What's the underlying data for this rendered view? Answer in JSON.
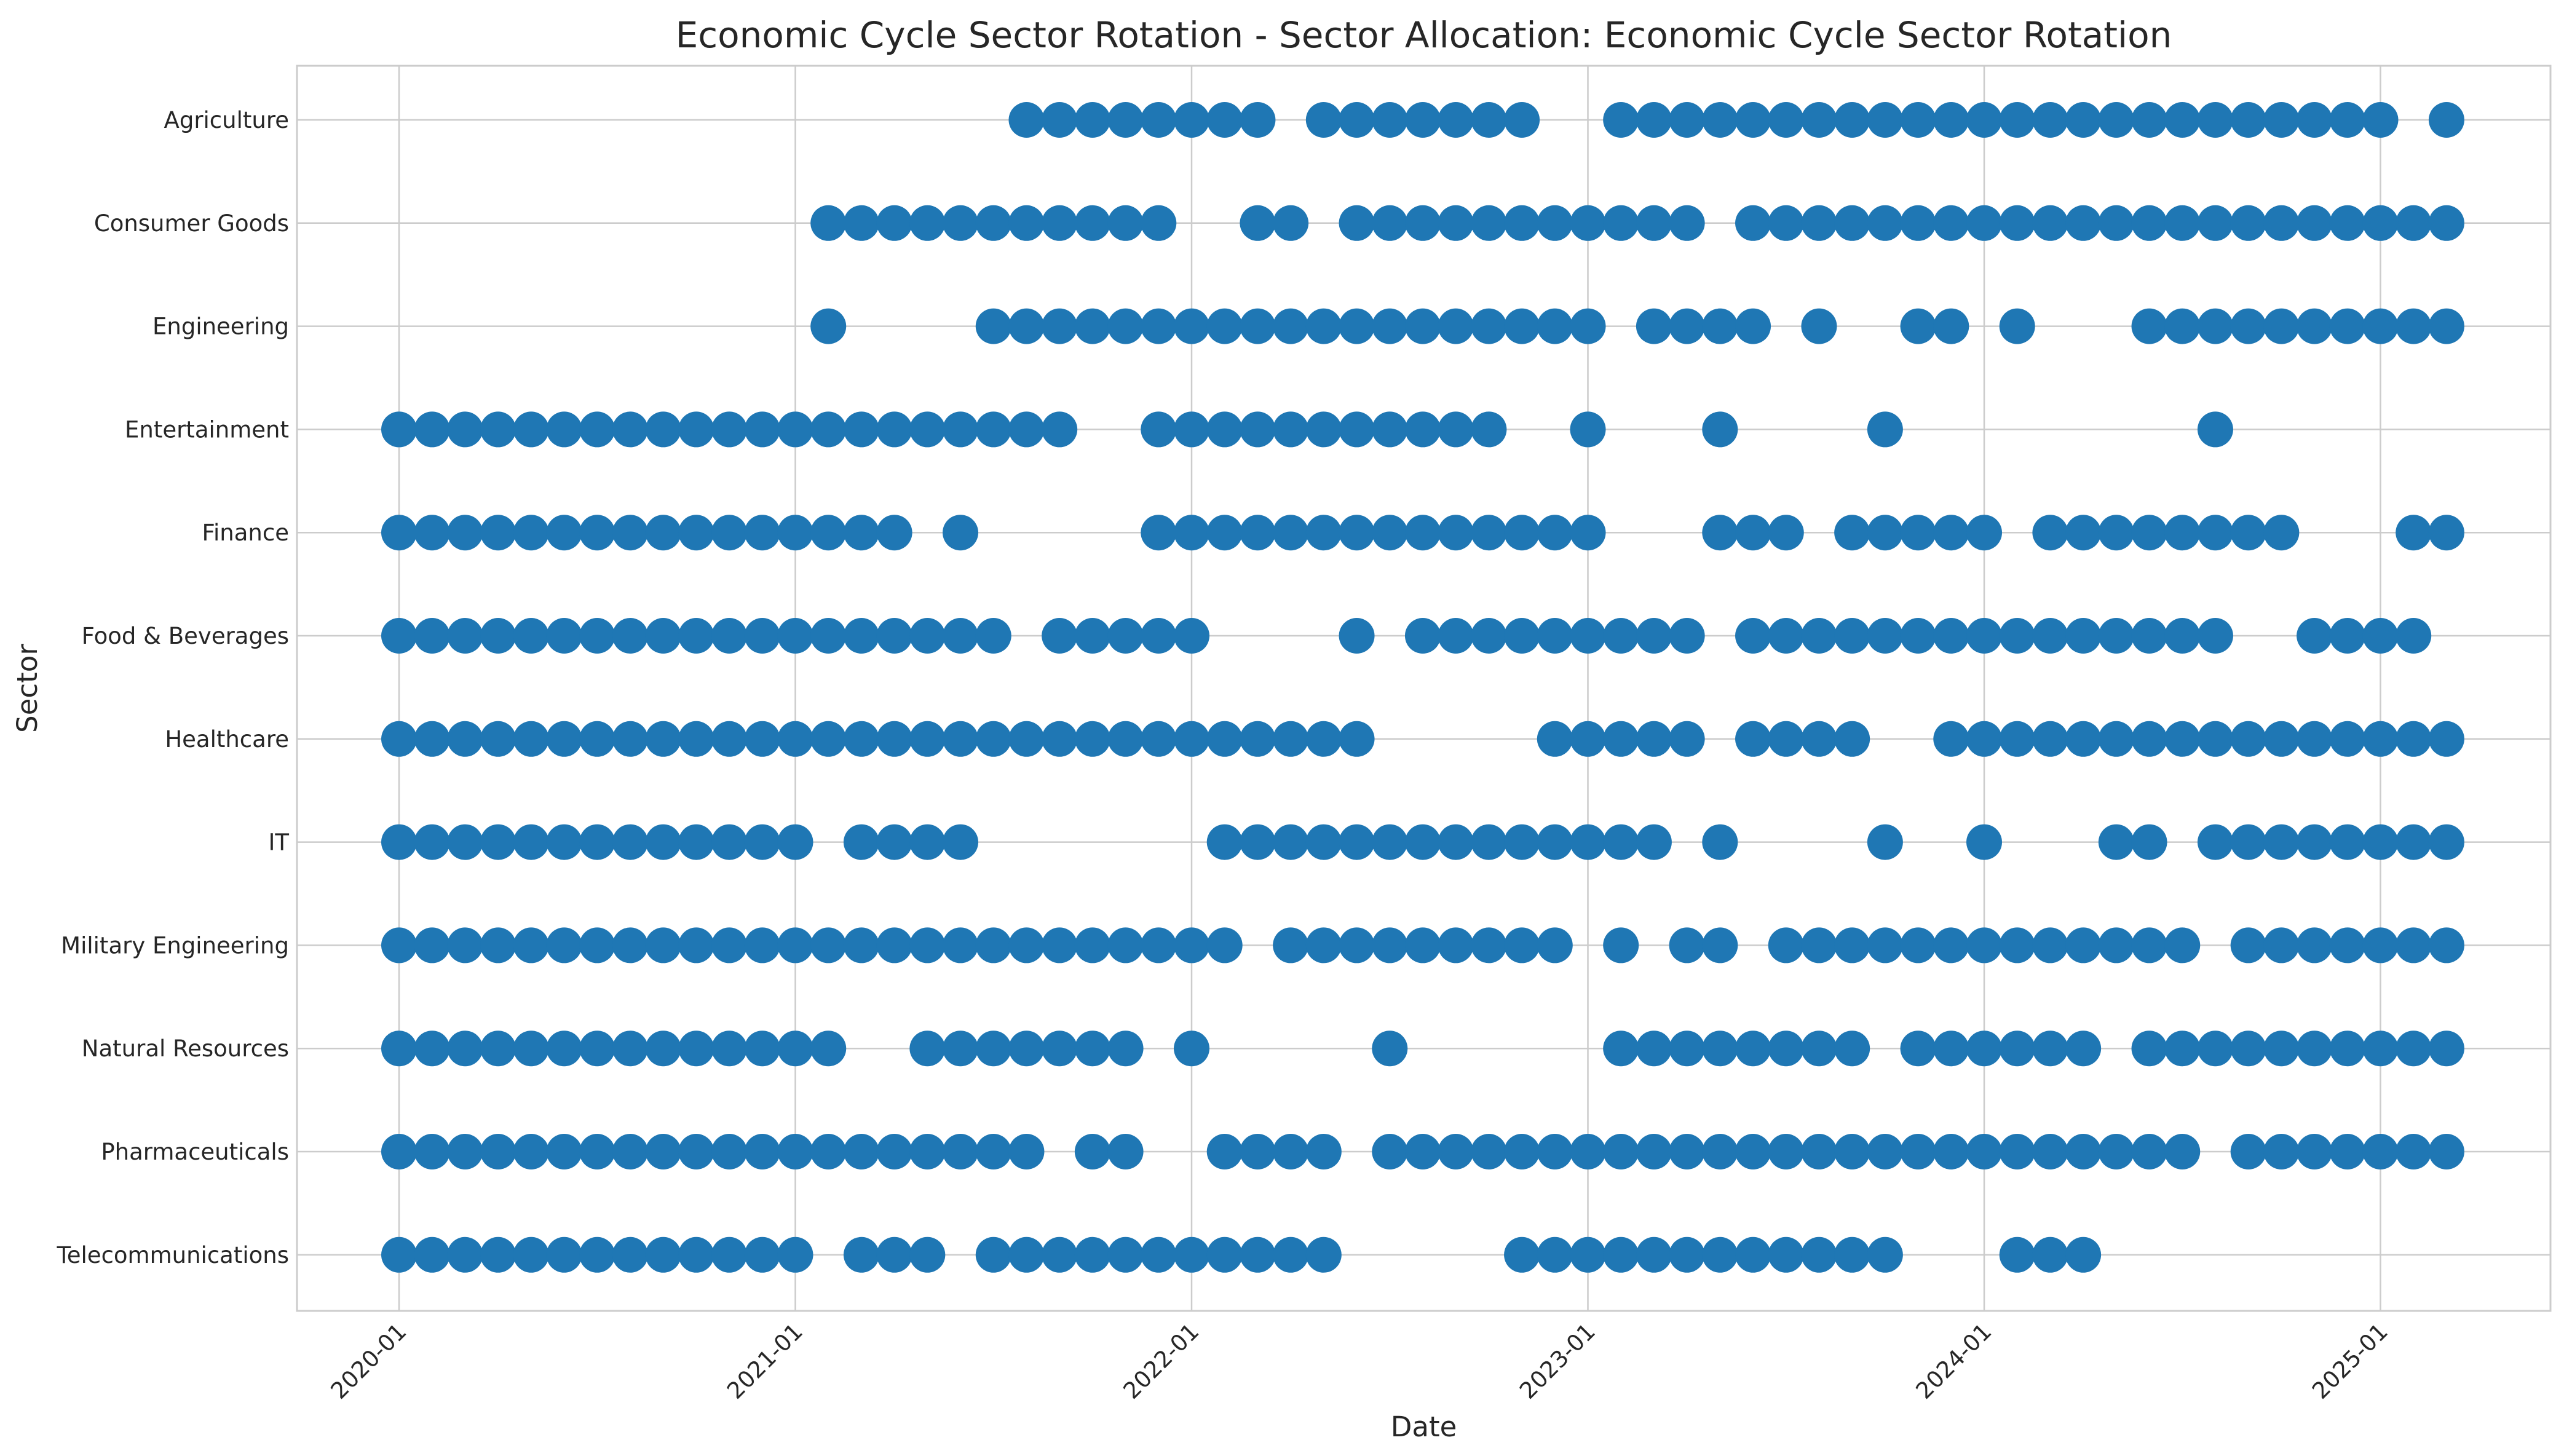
{
  "chart_data": {
    "type": "scatter",
    "title": "Economic Cycle Sector Rotation - Sector Allocation: Economic Cycle Sector Rotation",
    "xlabel": "Date",
    "ylabel": "Sector",
    "x_axis": "monthly dates (first of month)",
    "xlim": [
      "2019-10",
      "2025-05"
    ],
    "x_ticks": [
      "2020-01",
      "2021-01",
      "2022-01",
      "2023-01",
      "2024-01",
      "2025-01"
    ],
    "categories": [
      "Agriculture",
      "Consumer Goods",
      "Engineering",
      "Entertainment",
      "Finance",
      "Food & Beverages",
      "Healthcare",
      "IT",
      "Military Engineering",
      "Natural Resources",
      "Pharmaceuticals",
      "Telecommunications"
    ],
    "grid": true,
    "legend": "none",
    "marker_color": "#1f77b4",
    "series": [
      {
        "category": "Agriculture",
        "ranges": [
          [
            "2021-08",
            "2022-03"
          ],
          [
            "2022-05",
            "2022-11"
          ],
          [
            "2023-02",
            "2025-01"
          ],
          [
            "2025-03",
            "2025-03"
          ]
        ]
      },
      {
        "category": "Consumer Goods",
        "ranges": [
          [
            "2021-02",
            "2021-12"
          ],
          [
            "2022-03",
            "2022-04"
          ],
          [
            "2022-06",
            "2023-04"
          ],
          [
            "2023-06",
            "2025-03"
          ]
        ]
      },
      {
        "category": "Engineering",
        "ranges": [
          [
            "2021-02",
            "2021-02"
          ],
          [
            "2021-07",
            "2023-01"
          ],
          [
            "2023-03",
            "2023-06"
          ],
          [
            "2023-08",
            "2023-08"
          ],
          [
            "2023-11",
            "2023-12"
          ],
          [
            "2024-02",
            "2024-02"
          ],
          [
            "2024-06",
            "2025-03"
          ]
        ]
      },
      {
        "category": "Entertainment",
        "ranges": [
          [
            "2020-01",
            "2021-09"
          ],
          [
            "2021-12",
            "2022-10"
          ],
          [
            "2023-01",
            "2023-01"
          ],
          [
            "2023-05",
            "2023-05"
          ],
          [
            "2023-10",
            "2023-10"
          ],
          [
            "2024-08",
            "2024-08"
          ]
        ]
      },
      {
        "category": "Finance",
        "ranges": [
          [
            "2020-01",
            "2021-04"
          ],
          [
            "2021-06",
            "2021-06"
          ],
          [
            "2021-12",
            "2023-01"
          ],
          [
            "2023-05",
            "2023-07"
          ],
          [
            "2023-09",
            "2024-01"
          ],
          [
            "2024-03",
            "2024-10"
          ],
          [
            "2025-02",
            "2025-03"
          ]
        ]
      },
      {
        "category": "Food & Beverages",
        "ranges": [
          [
            "2020-01",
            "2021-07"
          ],
          [
            "2021-09",
            "2022-01"
          ],
          [
            "2022-06",
            "2022-06"
          ],
          [
            "2022-08",
            "2023-04"
          ],
          [
            "2023-06",
            "2024-08"
          ],
          [
            "2024-11",
            "2025-02"
          ]
        ]
      },
      {
        "category": "Healthcare",
        "ranges": [
          [
            "2020-01",
            "2022-06"
          ],
          [
            "2022-12",
            "2023-04"
          ],
          [
            "2023-06",
            "2023-09"
          ],
          [
            "2023-12",
            "2025-03"
          ]
        ]
      },
      {
        "category": "IT",
        "ranges": [
          [
            "2020-01",
            "2021-01"
          ],
          [
            "2021-03",
            "2021-06"
          ],
          [
            "2022-02",
            "2023-03"
          ],
          [
            "2023-05",
            "2023-05"
          ],
          [
            "2023-10",
            "2023-10"
          ],
          [
            "2024-01",
            "2024-01"
          ],
          [
            "2024-05",
            "2024-06"
          ],
          [
            "2024-08",
            "2025-03"
          ]
        ]
      },
      {
        "category": "Military Engineering",
        "ranges": [
          [
            "2020-01",
            "2022-02"
          ],
          [
            "2022-04",
            "2022-12"
          ],
          [
            "2023-02",
            "2023-02"
          ],
          [
            "2023-04",
            "2023-05"
          ],
          [
            "2023-07",
            "2024-07"
          ],
          [
            "2024-09",
            "2025-03"
          ]
        ]
      },
      {
        "category": "Natural Resources",
        "ranges": [
          [
            "2020-01",
            "2021-02"
          ],
          [
            "2021-05",
            "2021-11"
          ],
          [
            "2022-01",
            "2022-01"
          ],
          [
            "2022-07",
            "2022-07"
          ],
          [
            "2023-02",
            "2023-09"
          ],
          [
            "2023-11",
            "2024-04"
          ],
          [
            "2024-06",
            "2025-03"
          ]
        ]
      },
      {
        "category": "Pharmaceuticals",
        "ranges": [
          [
            "2020-01",
            "2021-08"
          ],
          [
            "2021-10",
            "2021-11"
          ],
          [
            "2022-02",
            "2022-05"
          ],
          [
            "2022-07",
            "2024-07"
          ],
          [
            "2024-09",
            "2025-03"
          ]
        ]
      },
      {
        "category": "Telecommunications",
        "ranges": [
          [
            "2020-01",
            "2021-01"
          ],
          [
            "2021-03",
            "2021-05"
          ],
          [
            "2021-07",
            "2022-05"
          ],
          [
            "2022-11",
            "2023-10"
          ],
          [
            "2024-02",
            "2024-04"
          ]
        ]
      }
    ]
  }
}
